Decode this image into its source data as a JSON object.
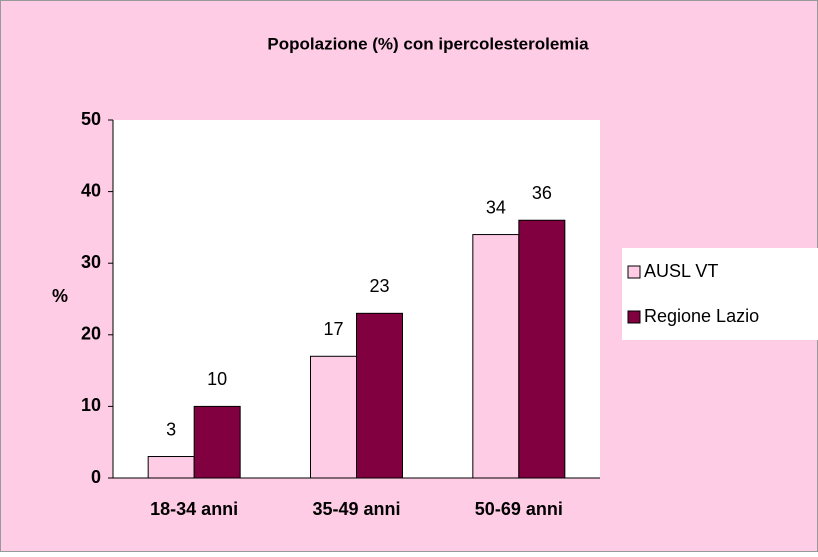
{
  "chart_data": {
    "type": "bar",
    "title": "Popolazione (%) con ipercolesterolemia",
    "y_label": "%",
    "categories": [
      "18-34 anni",
      "35-49 anni",
      "50-69 anni"
    ],
    "series": [
      {
        "name": "AUSL VT",
        "color": "#ffcce6",
        "values": [
          3,
          17,
          34
        ]
      },
      {
        "name": "Regione Lazio",
        "color": "#800040",
        "values": [
          10,
          23,
          36
        ]
      }
    ],
    "ylim": [
      0,
      50
    ],
    "yticks": [
      0,
      10,
      20,
      30,
      40,
      50
    ],
    "legend": "right"
  }
}
